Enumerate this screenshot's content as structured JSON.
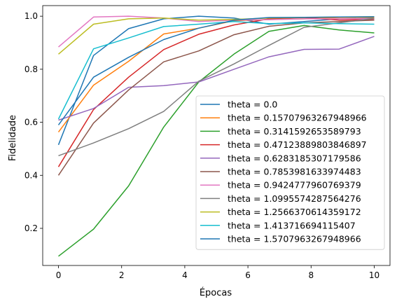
{
  "chart_data": {
    "type": "line",
    "title": "",
    "xlabel": "Épocas",
    "ylabel": "Fidelidade",
    "xlim": [
      -0.5,
      10.5
    ],
    "ylim": [
      0.06,
      1.04
    ],
    "xticks": [
      0,
      2,
      4,
      6,
      8,
      10
    ],
    "xtick_labels": [
      "0",
      "2",
      "4",
      "6",
      "8",
      "10"
    ],
    "yticks": [
      0.2,
      0.4,
      0.6,
      0.8,
      1.0
    ],
    "ytick_labels": [
      "0.2",
      "0.4",
      "0.6",
      "0.8",
      "1.0"
    ],
    "grid": false,
    "legend_position": "lower-right",
    "x": [
      0,
      1.111,
      2.222,
      3.333,
      4.444,
      5.556,
      6.667,
      7.778,
      8.889,
      10
    ],
    "series": [
      {
        "name": "theta = 0.0",
        "color": "#1f77b4",
        "values": [
          0.515,
          0.852,
          0.953,
          0.99,
          1.0,
          0.993,
          0.97,
          0.98,
          0.99,
          0.992
        ]
      },
      {
        "name": "theta = 0.15707963267948966",
        "color": "#ff7f0e",
        "values": [
          0.563,
          0.74,
          0.83,
          0.933,
          0.955,
          0.983,
          0.988,
          0.99,
          0.995,
          0.996
        ]
      },
      {
        "name": "theta = 0.3141592653589793",
        "color": "#2ca02c",
        "values": [
          0.095,
          0.197,
          0.36,
          0.582,
          0.752,
          0.857,
          0.943,
          0.965,
          0.948,
          0.937
        ]
      },
      {
        "name": "theta = 0.47123889803846897",
        "color": "#d62728",
        "values": [
          0.432,
          0.648,
          0.77,
          0.874,
          0.932,
          0.967,
          0.99,
          0.995,
          0.985,
          0.988
        ]
      },
      {
        "name": "theta = 0.6283185307179586",
        "color": "#9467bd",
        "values": [
          0.608,
          0.652,
          0.732,
          0.738,
          0.752,
          0.8,
          0.847,
          0.875,
          0.876,
          0.924
        ]
      },
      {
        "name": "theta = 0.7853981633974483",
        "color": "#8c564b",
        "values": [
          0.4,
          0.597,
          0.722,
          0.828,
          0.869,
          0.93,
          0.962,
          0.975,
          0.98,
          0.985
        ]
      },
      {
        "name": "theta = 0.9424777960769379",
        "color": "#e377c2",
        "values": [
          0.884,
          0.997,
          1.0,
          0.993,
          0.98,
          0.985,
          0.987,
          0.99,
          0.99,
          0.99
        ]
      },
      {
        "name": "theta = 1.0995574287564276",
        "color": "#7f7f7f",
        "values": [
          0.474,
          0.522,
          0.576,
          0.641,
          0.755,
          0.82,
          0.89,
          0.958,
          0.975,
          0.992
        ]
      },
      {
        "name": "theta = 1.2566370614359172",
        "color": "#bcbd22",
        "values": [
          0.857,
          0.97,
          0.99,
          0.993,
          0.985,
          0.988,
          0.993,
          0.995,
          0.997,
          0.998
        ]
      },
      {
        "name": "theta = 1.413716694115407",
        "color": "#17becf",
        "values": [
          0.612,
          0.877,
          0.918,
          0.961,
          0.97,
          0.98,
          0.972,
          0.975,
          0.972,
          0.97
        ]
      },
      {
        "name": "theta = 1.5707963267948966",
        "color": "#1f77b4",
        "values": [
          0.59,
          0.77,
          0.845,
          0.912,
          0.955,
          0.985,
          0.995,
          0.996,
          0.997,
          0.998
        ]
      }
    ]
  }
}
